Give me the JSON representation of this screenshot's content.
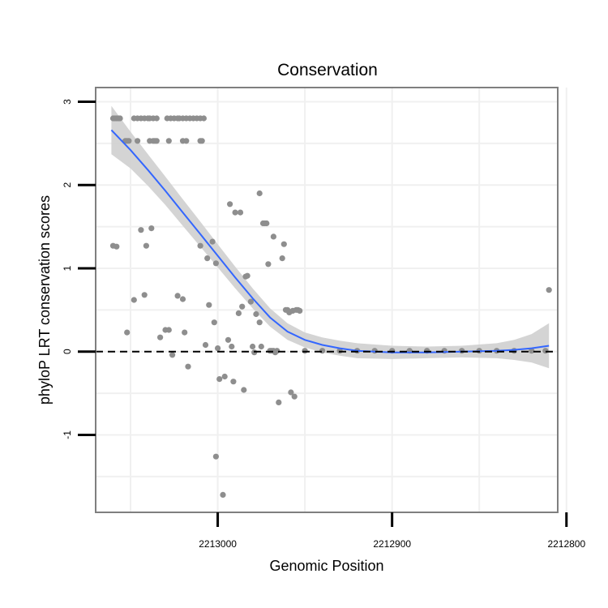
{
  "chart_data": {
    "type": "scatter",
    "title": "Conservation",
    "xlabel": "Genomic Position",
    "ylabel": "phyloP LRT conservation scores",
    "x_reversed": true,
    "xlim": [
      2213070,
      2212805
    ],
    "ylim": [
      -1.93,
      3.17
    ],
    "x_ticks": [
      {
        "value": 2213000,
        "label": "2213000"
      },
      {
        "value": 2212900,
        "label": "2212900"
      },
      {
        "value": 2212800,
        "label": "2212800"
      }
    ],
    "y_ticks": [
      {
        "value": 3,
        "label": "3"
      },
      {
        "value": 2,
        "label": "2"
      },
      {
        "value": 1,
        "label": "1"
      },
      {
        "value": 0,
        "label": "0"
      },
      {
        "value": -1,
        "label": "-1"
      }
    ],
    "x_gridlines": [
      2213050,
      2213000,
      2212950,
      2212900,
      2212850,
      2212800
    ],
    "y_gridlines": [
      3,
      2.5,
      2,
      1.5,
      1,
      0.5,
      0,
      -0.5,
      -1,
      -1.5
    ],
    "reference_line": {
      "y": 0,
      "style": "dashed"
    },
    "colors": {
      "points": "#8e8e8e",
      "smooth": "#3366ff",
      "ribbon": "#cfcfcf",
      "panel_border": "#7f7f7f",
      "grid": "#f0f0f0"
    },
    "series": [
      {
        "name": "phyloP scores",
        "points": [
          [
            2213060,
            1.27
          ],
          [
            2213058,
            1.26
          ],
          [
            2213060,
            2.8
          ],
          [
            2213059,
            2.8
          ],
          [
            2213058,
            2.8
          ],
          [
            2213057,
            2.8
          ],
          [
            2213056,
            2.8
          ],
          [
            2213048,
            2.8
          ],
          [
            2213046,
            2.8
          ],
          [
            2213044,
            2.8
          ],
          [
            2213042,
            2.8
          ],
          [
            2213040,
            2.8
          ],
          [
            2213039,
            2.8
          ],
          [
            2213037,
            2.8
          ],
          [
            2213035,
            2.8
          ],
          [
            2213029,
            2.8
          ],
          [
            2213027,
            2.8
          ],
          [
            2213025,
            2.8
          ],
          [
            2213023,
            2.8
          ],
          [
            2213022,
            2.8
          ],
          [
            2213020,
            2.8
          ],
          [
            2213018,
            2.8
          ],
          [
            2213016,
            2.8
          ],
          [
            2213014,
            2.8
          ],
          [
            2213012,
            2.8
          ],
          [
            2213010,
            2.8
          ],
          [
            2213008,
            2.8
          ],
          [
            2213053,
            2.53
          ],
          [
            2213052,
            2.53
          ],
          [
            2213051,
            2.53
          ],
          [
            2213046,
            2.53
          ],
          [
            2213039,
            2.53
          ],
          [
            2213037,
            2.53
          ],
          [
            2213036,
            2.53
          ],
          [
            2213035,
            2.53
          ],
          [
            2213028,
            2.53
          ],
          [
            2213020,
            2.53
          ],
          [
            2213018,
            2.53
          ],
          [
            2213010,
            2.53
          ],
          [
            2213009,
            2.53
          ],
          [
            2213044,
            1.46
          ],
          [
            2213038,
            1.48
          ],
          [
            2213041,
            1.27
          ],
          [
            2213048,
            0.62
          ],
          [
            2213042,
            0.68
          ],
          [
            2213052,
            0.23
          ],
          [
            2213033,
            0.17
          ],
          [
            2213030,
            0.26
          ],
          [
            2213028,
            0.26
          ],
          [
            2213026,
            -0.04
          ],
          [
            2213023,
            0.67
          ],
          [
            2213020,
            0.63
          ],
          [
            2213019,
            0.23
          ],
          [
            2213017,
            -0.18
          ],
          [
            2213010,
            1.27
          ],
          [
            2213006,
            1.12
          ],
          [
            2213003,
            1.32
          ],
          [
            2213001,
            1.06
          ],
          [
            2213005,
            0.56
          ],
          [
            2213007,
            0.08
          ],
          [
            2213002,
            0.35
          ],
          [
            2213000,
            0.04
          ],
          [
            2212999,
            -0.33
          ],
          [
            2212996,
            -0.3
          ],
          [
            2212994,
            0.14
          ],
          [
            2212992,
            0.06
          ],
          [
            2212991,
            -0.36
          ],
          [
            2213001,
            -1.26
          ],
          [
            2212997,
            -1.72
          ],
          [
            2212993,
            1.77
          ],
          [
            2212990,
            1.67
          ],
          [
            2212987,
            1.67
          ],
          [
            2212988,
            0.46
          ],
          [
            2212986,
            0.54
          ],
          [
            2212985,
            -0.46
          ],
          [
            2212984,
            0.9
          ],
          [
            2212983,
            0.91
          ],
          [
            2212981,
            0.6
          ],
          [
            2212980,
            0.06
          ],
          [
            2212979,
            -0.01
          ],
          [
            2212978,
            0.45
          ],
          [
            2212976,
            0.35
          ],
          [
            2212976,
            1.9
          ],
          [
            2212974,
            1.54
          ],
          [
            2212973,
            1.54
          ],
          [
            2212972,
            1.54
          ],
          [
            2212971,
            1.05
          ],
          [
            2212975,
            0.06
          ],
          [
            2212970,
            0.01
          ],
          [
            2212969,
            0.01
          ],
          [
            2212968,
            0.01
          ],
          [
            2212967,
            -0.01
          ],
          [
            2212966,
            0.01
          ],
          [
            2212968,
            1.38
          ],
          [
            2212965,
            -0.61
          ],
          [
            2212963,
            1.12
          ],
          [
            2212962,
            1.29
          ],
          [
            2212961,
            0.5
          ],
          [
            2212960,
            0.5
          ],
          [
            2212959,
            0.47
          ],
          [
            2212958,
            -0.49
          ],
          [
            2212957,
            0.49
          ],
          [
            2212956,
            -0.54
          ],
          [
            2212955,
            0.5
          ],
          [
            2212954,
            0.5
          ],
          [
            2212953,
            0.49
          ],
          [
            2212950,
            0.01
          ],
          [
            2212940,
            0.01
          ],
          [
            2212930,
            0.01
          ],
          [
            2212920,
            0.01
          ],
          [
            2212910,
            0.01
          ],
          [
            2212900,
            0.01
          ],
          [
            2212890,
            0.01
          ],
          [
            2212880,
            0.01
          ],
          [
            2212870,
            0.01
          ],
          [
            2212860,
            0.01
          ],
          [
            2212850,
            0.01
          ],
          [
            2212840,
            0.01
          ],
          [
            2212830,
            0.01
          ],
          [
            2212820,
            0.01
          ],
          [
            2212812,
            0.01
          ],
          [
            2212810,
            0.74
          ]
        ]
      }
    ],
    "smooth": {
      "method": "loess",
      "curve": [
        [
          2213061,
          2.66
        ],
        [
          2213050,
          2.42
        ],
        [
          2213040,
          2.18
        ],
        [
          2213030,
          1.93
        ],
        [
          2213020,
          1.67
        ],
        [
          2213010,
          1.41
        ],
        [
          2213000,
          1.15
        ],
        [
          2212990,
          0.89
        ],
        [
          2212980,
          0.64
        ],
        [
          2212970,
          0.41
        ],
        [
          2212960,
          0.24
        ],
        [
          2212950,
          0.14
        ],
        [
          2212940,
          0.08
        ],
        [
          2212930,
          0.04
        ],
        [
          2212920,
          0.01
        ],
        [
          2212900,
          -0.01
        ],
        [
          2212880,
          -0.01
        ],
        [
          2212860,
          0.0
        ],
        [
          2212840,
          0.01
        ],
        [
          2212830,
          0.02
        ],
        [
          2212820,
          0.04
        ],
        [
          2212810,
          0.07
        ]
      ],
      "band_upper": [
        [
          2213061,
          2.95
        ],
        [
          2213050,
          2.64
        ],
        [
          2213040,
          2.37
        ],
        [
          2213030,
          2.1
        ],
        [
          2213020,
          1.83
        ],
        [
          2213010,
          1.56
        ],
        [
          2213000,
          1.29
        ],
        [
          2212990,
          1.02
        ],
        [
          2212980,
          0.76
        ],
        [
          2212970,
          0.52
        ],
        [
          2212960,
          0.34
        ],
        [
          2212950,
          0.23
        ],
        [
          2212940,
          0.17
        ],
        [
          2212930,
          0.13
        ],
        [
          2212920,
          0.1
        ],
        [
          2212900,
          0.07
        ],
        [
          2212880,
          0.06
        ],
        [
          2212860,
          0.07
        ],
        [
          2212840,
          0.1
        ],
        [
          2212830,
          0.14
        ],
        [
          2212820,
          0.21
        ],
        [
          2212810,
          0.34
        ]
      ],
      "band_lower": [
        [
          2213061,
          2.37
        ],
        [
          2213050,
          2.2
        ],
        [
          2213040,
          1.99
        ],
        [
          2213030,
          1.76
        ],
        [
          2213020,
          1.51
        ],
        [
          2213010,
          1.26
        ],
        [
          2213000,
          1.01
        ],
        [
          2212990,
          0.76
        ],
        [
          2212980,
          0.52
        ],
        [
          2212970,
          0.3
        ],
        [
          2212960,
          0.14
        ],
        [
          2212950,
          0.05
        ],
        [
          2212940,
          -0.01
        ],
        [
          2212930,
          -0.05
        ],
        [
          2212920,
          -0.08
        ],
        [
          2212900,
          -0.09
        ],
        [
          2212880,
          -0.08
        ],
        [
          2212860,
          -0.07
        ],
        [
          2212840,
          -0.08
        ],
        [
          2212830,
          -0.1
        ],
        [
          2212820,
          -0.13
        ],
        [
          2212810,
          -0.2
        ]
      ]
    }
  }
}
